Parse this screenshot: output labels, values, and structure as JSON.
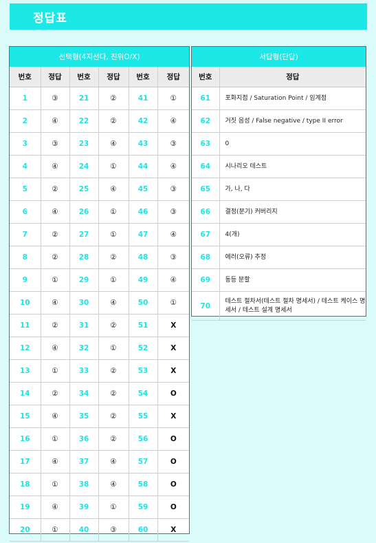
{
  "title": "정답표",
  "left": {
    "header": "선택형(4지선다, 진위O/X)",
    "columns": [
      "번호",
      "정답",
      "번호",
      "정답",
      "번호",
      "정답"
    ],
    "rows": [
      [
        "1",
        "③",
        "21",
        "②",
        "41",
        "①"
      ],
      [
        "2",
        "④",
        "22",
        "②",
        "42",
        "④"
      ],
      [
        "3",
        "③",
        "23",
        "④",
        "43",
        "③"
      ],
      [
        "4",
        "④",
        "24",
        "①",
        "44",
        "④"
      ],
      [
        "5",
        "②",
        "25",
        "④",
        "45",
        "③"
      ],
      [
        "6",
        "④",
        "26",
        "①",
        "46",
        "③"
      ],
      [
        "7",
        "②",
        "27",
        "①",
        "47",
        "④"
      ],
      [
        "8",
        "②",
        "28",
        "②",
        "48",
        "③"
      ],
      [
        "9",
        "①",
        "29",
        "①",
        "49",
        "④"
      ],
      [
        "10",
        "④",
        "30",
        "④",
        "50",
        "①"
      ],
      [
        "11",
        "②",
        "31",
        "②",
        "51",
        "X"
      ],
      [
        "12",
        "④",
        "32",
        "①",
        "52",
        "X"
      ],
      [
        "13",
        "①",
        "33",
        "②",
        "53",
        "X"
      ],
      [
        "14",
        "②",
        "34",
        "②",
        "54",
        "O"
      ],
      [
        "15",
        "④",
        "35",
        "②",
        "55",
        "X"
      ],
      [
        "16",
        "①",
        "36",
        "②",
        "56",
        "O"
      ],
      [
        "17",
        "④",
        "37",
        "④",
        "57",
        "O"
      ],
      [
        "18",
        "①",
        "38",
        "④",
        "58",
        "O"
      ],
      [
        "19",
        "④",
        "39",
        "①",
        "59",
        "O"
      ],
      [
        "20",
        "①",
        "40",
        "③",
        "60",
        "X"
      ]
    ]
  },
  "right": {
    "header": "서답형(단답)",
    "columns": [
      "번호",
      "정답"
    ],
    "rows": [
      [
        "61",
        "포화지점 / Saturation Point / 임계점"
      ],
      [
        "62",
        "거짓 음성 / False negative / type II error"
      ],
      [
        "63",
        "0"
      ],
      [
        "64",
        "시나리오 테스트"
      ],
      [
        "65",
        "가, 나, 다"
      ],
      [
        "66",
        "결정(분기) 커버리지"
      ],
      [
        "67",
        "4(개)"
      ],
      [
        "68",
        "에러(오류) 추정"
      ],
      [
        "69",
        "동등 분할"
      ],
      [
        "70",
        "테스트 절차서(테스트 절차 명세서) / 테스트 케이스 명세서 / 테스트 설계 명세서"
      ]
    ]
  }
}
